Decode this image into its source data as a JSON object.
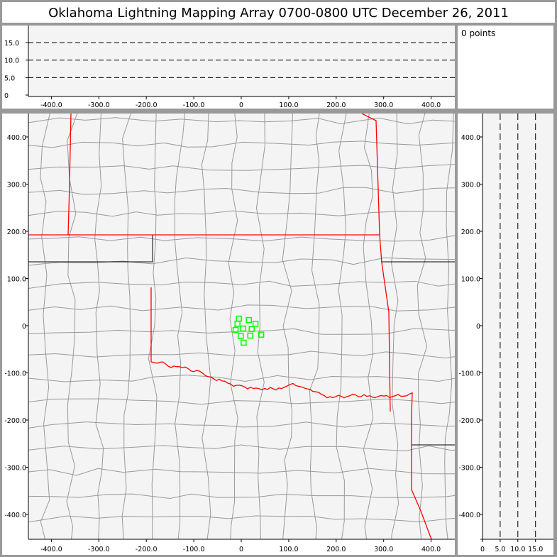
{
  "title": "Oklahoma Lightning Mapping Array   0700-0800 UTC  December 26, 2011",
  "points_label": "0 points",
  "colors": {
    "border_state_red": "#ff0000",
    "county": "#999999",
    "station": "#00ff00",
    "panel_bg": "#f4f4f4"
  },
  "chart_data": [
    {
      "type": "line",
      "panel": "altitude-vs-east-west",
      "xlim": [
        -450,
        450
      ],
      "ylim": [
        0,
        20
      ],
      "xticks": [
        "-400.0",
        "-300.0",
        "-200.0",
        "-100.0",
        "0",
        "100.0",
        "200.0",
        "300.0",
        "400.0"
      ],
      "xtick_values": [
        -400,
        -300,
        -200,
        -100,
        0,
        100,
        200,
        300,
        400
      ],
      "yticks": [
        "0",
        "5.0",
        "10.0",
        "15.0"
      ],
      "ytick_values": [
        0,
        5,
        10,
        15
      ],
      "dashed_reference_lines": [
        5,
        10,
        15
      ],
      "series": []
    },
    {
      "type": "scatter",
      "panel": "plan-view-map",
      "xlim": [
        -450,
        450
      ],
      "ylim": [
        -450,
        450
      ],
      "xticks": [
        "-400.0",
        "-300.0",
        "-200.0",
        "-100.0",
        "0",
        "100.0",
        "200.0",
        "300.0",
        "400.0"
      ],
      "xtick_values": [
        -400,
        -300,
        -200,
        -100,
        0,
        100,
        200,
        300,
        400
      ],
      "yticks": [
        "-400.0",
        "-300.0",
        "-200.0",
        "-100.0",
        "0",
        "100.0",
        "200.0",
        "300.0",
        "400.0"
      ],
      "ytick_values": [
        -400,
        -300,
        -200,
        -100,
        0,
        100,
        200,
        300,
        400
      ],
      "stations": [
        [
          -5,
          15
        ],
        [
          16,
          12
        ],
        [
          -8,
          4
        ],
        [
          30,
          4
        ],
        [
          4,
          -6
        ],
        [
          -12,
          -9
        ],
        [
          22,
          -7
        ],
        [
          -1,
          -22
        ],
        [
          19,
          -21
        ],
        [
          42,
          -19
        ],
        [
          5,
          -36
        ]
      ]
    },
    {
      "type": "line",
      "panel": "north-south-vs-altitude",
      "xlim": [
        0,
        20
      ],
      "ylim": [
        -450,
        450
      ],
      "xticks": [
        "0",
        "5.0",
        "10.0",
        "15.0"
      ],
      "xtick_values": [
        0,
        5,
        10,
        15
      ],
      "yticks": [
        "-400.0",
        "-300.0",
        "-200.0",
        "-100.0",
        "0",
        "100.0",
        "200.0",
        "300.0",
        "400.0"
      ],
      "ytick_values": [
        -400,
        -300,
        -200,
        -100,
        0,
        100,
        200,
        300,
        400
      ],
      "dashed_reference_lines": [
        5,
        10,
        15
      ],
      "series": []
    }
  ]
}
